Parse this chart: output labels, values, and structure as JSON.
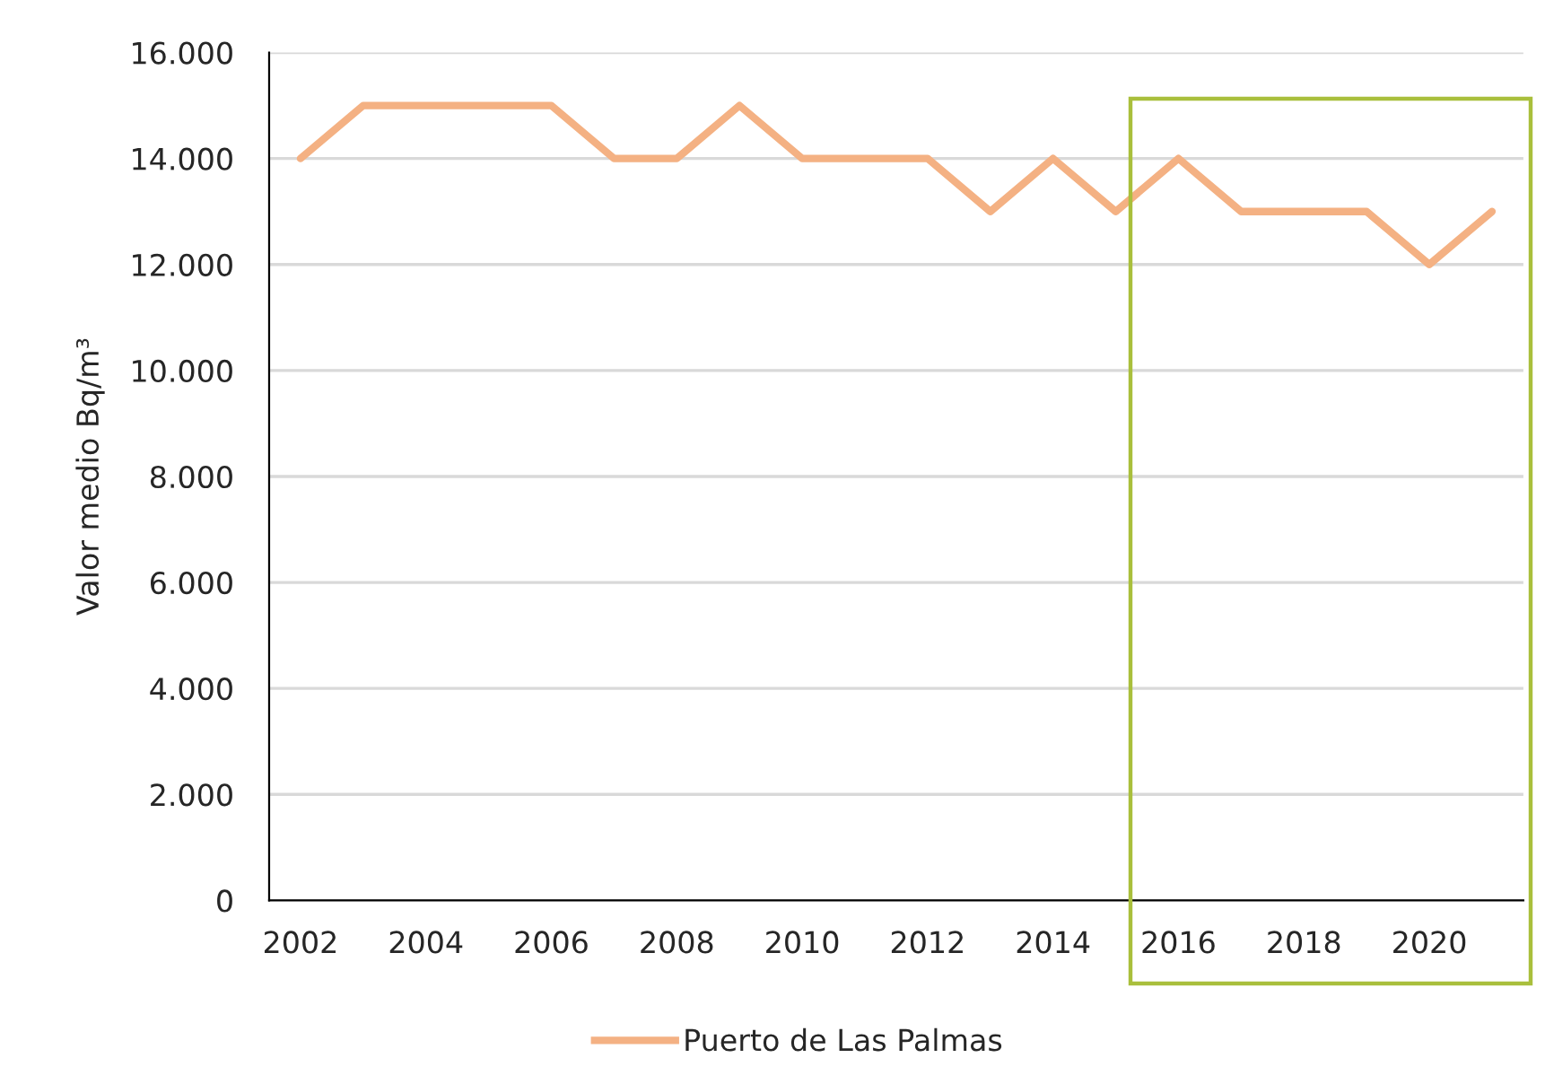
{
  "chart_data": {
    "type": "line",
    "x": [
      2002,
      2003,
      2004,
      2005,
      2006,
      2007,
      2008,
      2009,
      2010,
      2011,
      2012,
      2013,
      2014,
      2015,
      2016,
      2017,
      2018,
      2019,
      2020,
      2021
    ],
    "series": [
      {
        "name": "Puerto de Las Palmas",
        "color": "#f4b183",
        "values": [
          14000,
          15000,
          15000,
          15000,
          15000,
          14000,
          14000,
          15000,
          14000,
          14000,
          14000,
          13000,
          14000,
          13000,
          14000,
          13000,
          13000,
          13000,
          12000,
          13000
        ]
      }
    ],
    "xlim": [
      2001.5,
      2021.5
    ],
    "xticks": [
      2002,
      2004,
      2006,
      2008,
      2010,
      2012,
      2014,
      2016,
      2018,
      2020
    ],
    "ylim": [
      0,
      16000
    ],
    "yticks": [
      0,
      {
        "value": 2000,
        "label": "2.000"
      },
      {
        "value": 4000,
        "label": "4.000"
      },
      {
        "value": 6000,
        "label": "6.000"
      },
      {
        "value": 8000,
        "label": "8.000"
      },
      {
        "value": 10000,
        "label": "10.000"
      },
      {
        "value": 12000,
        "label": "12.000"
      },
      {
        "value": 14000,
        "label": "14.000"
      },
      {
        "value": 16000,
        "label": "16.000"
      }
    ],
    "ylabel": "Valor medio Bq/m³",
    "grid": "y",
    "legend": "bottom",
    "line_style": "solid"
  }
}
